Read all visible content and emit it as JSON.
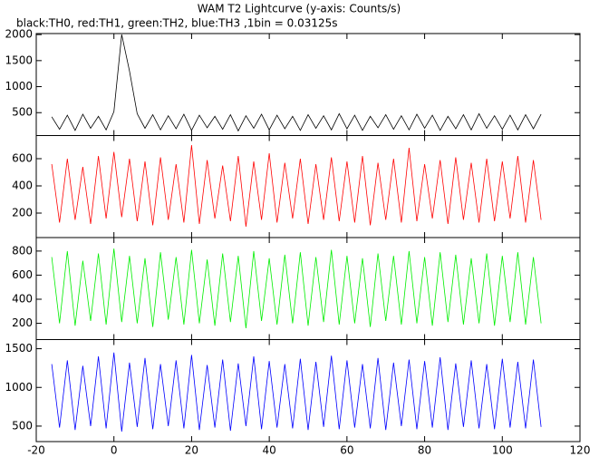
{
  "chart_data": {
    "type": "line",
    "title": "WAM T2 Lightcurve (y-axis: Counts/s)",
    "subtitle": "black:TH0, red:TH1, green:TH2, blue:TH3 ,1bin = 0.03125s",
    "x": [
      -16,
      -14,
      -12,
      -10,
      -8,
      -6,
      -4,
      -2,
      0,
      2,
      4,
      6,
      8,
      10,
      12,
      14,
      16,
      18,
      20,
      22,
      24,
      26,
      28,
      30,
      32,
      34,
      36,
      38,
      40,
      42,
      44,
      46,
      48,
      50,
      52,
      54,
      56,
      58,
      60,
      62,
      64,
      66,
      68,
      70,
      72,
      74,
      76,
      78,
      80,
      82,
      84,
      86,
      88,
      90,
      92,
      94,
      96,
      98,
      100,
      102,
      104,
      106,
      108,
      110
    ],
    "xlim": [
      -20,
      120
    ],
    "xticks": [
      -20,
      0,
      20,
      40,
      60,
      80,
      100,
      120
    ],
    "series": [
      {
        "color": "#000000",
        "ylim": [
          60,
          2020
        ],
        "yticks": [
          500,
          1000,
          1500,
          2000
        ],
        "values": [
          420,
          180,
          450,
          160,
          470,
          200,
          430,
          170,
          520,
          2000,
          1300,
          480,
          200,
          460,
          170,
          440,
          190,
          470,
          160,
          450,
          210,
          430,
          180,
          460,
          150,
          440,
          200,
          470,
          170,
          450,
          190,
          430,
          160,
          460,
          200,
          440,
          170,
          480,
          190,
          450,
          160,
          430,
          210,
          460,
          180,
          440,
          170,
          470,
          200,
          450,
          160,
          430,
          190,
          460,
          170,
          480,
          200,
          440,
          180,
          450,
          170,
          460,
          190,
          470
        ]
      },
      {
        "color": "#ff0000",
        "ylim": [
          20,
          770
        ],
        "yticks": [
          200,
          400,
          600
        ],
        "values": [
          560,
          130,
          600,
          150,
          540,
          120,
          620,
          160,
          650,
          170,
          600,
          140,
          580,
          110,
          610,
          150,
          560,
          130,
          700,
          120,
          590,
          160,
          550,
          140,
          620,
          100,
          580,
          150,
          640,
          130,
          570,
          160,
          600,
          120,
          560,
          150,
          610,
          140,
          580,
          130,
          620,
          110,
          570,
          150,
          600,
          130,
          680,
          140,
          560,
          160,
          590,
          120,
          610,
          150,
          570,
          130,
          600,
          140,
          580,
          160,
          620,
          130,
          590,
          150
        ]
      },
      {
        "color": "#00ee00",
        "ylim": [
          65,
          912
        ],
        "yticks": [
          200,
          400,
          600,
          800
        ],
        "values": [
          750,
          200,
          800,
          180,
          720,
          220,
          780,
          190,
          820,
          210,
          760,
          200,
          740,
          170,
          790,
          230,
          750,
          190,
          810,
          200,
          730,
          180,
          780,
          210,
          760,
          160,
          800,
          220,
          740,
          190,
          770,
          200,
          790,
          180,
          750,
          210,
          810,
          190,
          760,
          200,
          740,
          170,
          780,
          220,
          760,
          190,
          800,
          200,
          750,
          180,
          790,
          210,
          770,
          190,
          740,
          200,
          780,
          180,
          760,
          210,
          790,
          190,
          750,
          200
        ]
      },
      {
        "color": "#0000ff",
        "ylim": [
          300,
          1618
        ],
        "yticks": [
          500,
          1000,
          1500
        ],
        "values": [
          1300,
          480,
          1350,
          450,
          1280,
          500,
          1400,
          470,
          1450,
          430,
          1320,
          490,
          1380,
          460,
          1300,
          500,
          1350,
          470,
          1420,
          450,
          1290,
          480,
          1360,
          440,
          1310,
          500,
          1400,
          460,
          1340,
          480,
          1300,
          470,
          1370,
          450,
          1330,
          490,
          1410,
          460,
          1350,
          480,
          1300,
          470,
          1380,
          450,
          1320,
          500,
          1360,
          460,
          1340,
          480,
          1390,
          450,
          1310,
          490,
          1350,
          470,
          1300,
          460,
          1370,
          480,
          1330,
          470,
          1360,
          490
        ]
      }
    ]
  }
}
